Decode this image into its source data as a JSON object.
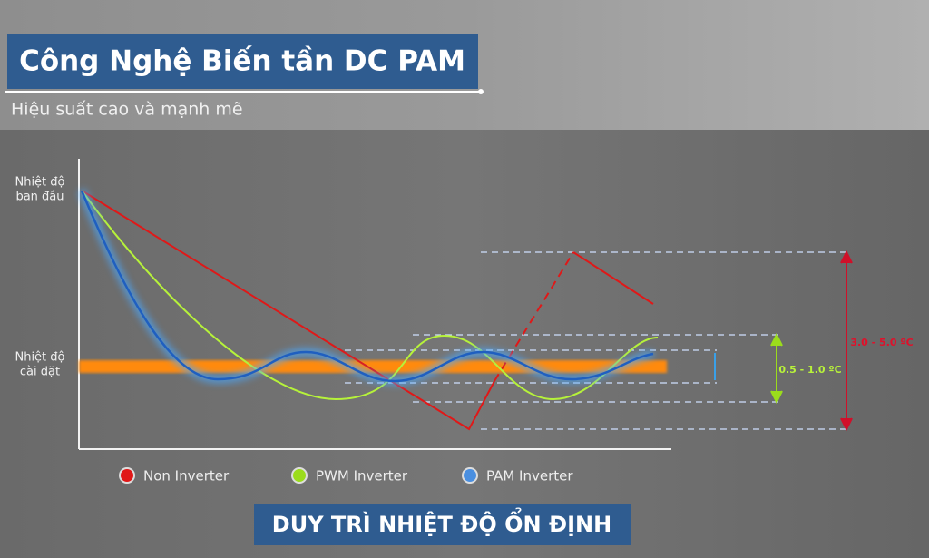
{
  "header": {
    "title": "Công Nghệ Biến tần DC PAM",
    "subtitle": "Hiệu suất cao và mạnh mẽ"
  },
  "axis_labels": {
    "start": [
      "Nhiệt độ",
      "ban đầu"
    ],
    "set": [
      "Nhiệt độ",
      "cài đặt"
    ]
  },
  "ranges": {
    "non_inverter": "3.0 - 5.0 ºC",
    "pwm_inverter": "0.5 - 1.0 ºC"
  },
  "legend": [
    "Non Inverter",
    "PWM Inverter",
    "PAM Inverter"
  ],
  "footer": "DUY TRÌ NHIỆT ĐỘ ỔN ĐỊNH"
}
